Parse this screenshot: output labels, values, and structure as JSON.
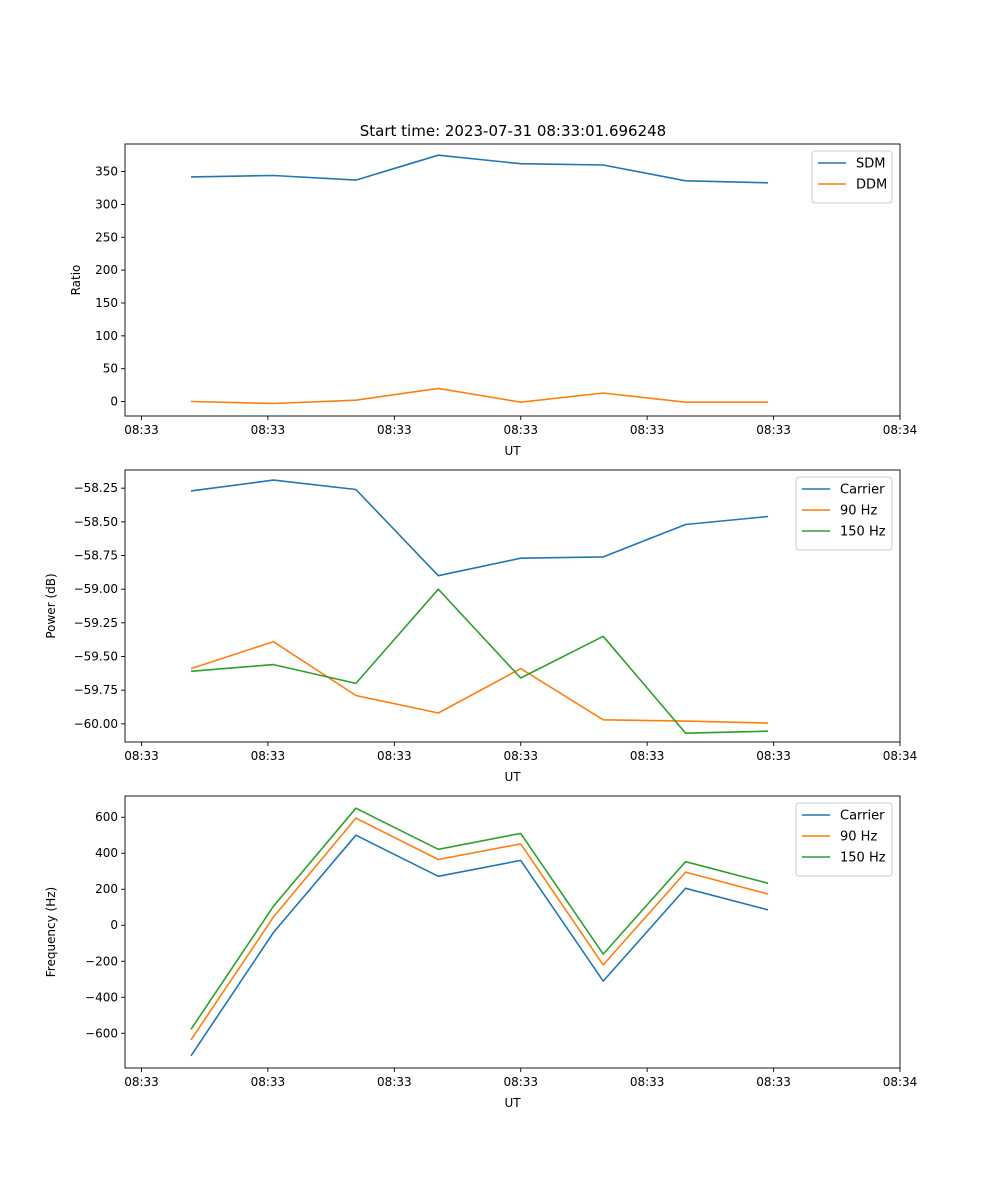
{
  "figure_title": "Start time: 2023-07-31 08:33:01.696248",
  "colors": {
    "blue": "#1f77b4",
    "orange": "#ff7f0e",
    "green": "#2ca02c"
  },
  "chart_data": [
    {
      "type": "line",
      "title": "Start time: 2023-07-31 08:33:01.696248",
      "xlabel": "UT",
      "ylabel": "Ratio",
      "x": [
        1,
        2,
        3,
        4,
        5,
        6,
        7,
        8
      ],
      "xlim": [
        0.2,
        9.6
      ],
      "x_ticks": [
        0.4,
        1.933,
        3.467,
        5.0,
        6.533,
        8.067,
        9.6
      ],
      "x_tick_labels": [
        "08:33",
        "08:33",
        "08:33",
        "08:33",
        "08:33",
        "08:33",
        "08:34"
      ],
      "ylim": [
        -22,
        392
      ],
      "y_ticks": [
        0,
        50,
        100,
        150,
        200,
        250,
        300,
        350
      ],
      "y_tick_labels": [
        "0",
        "50",
        "100",
        "150",
        "200",
        "250",
        "300",
        "350"
      ],
      "legend_location": "upper right",
      "series": [
        {
          "name": "SDM",
          "color": "#1f77b4",
          "values": [
            342,
            344,
            337,
            375,
            362,
            360,
            336,
            333
          ]
        },
        {
          "name": "DDM",
          "color": "#ff7f0e",
          "values": [
            0,
            -3,
            2,
            20,
            -1,
            13,
            -1,
            -1
          ]
        }
      ]
    },
    {
      "type": "line",
      "title": "",
      "xlabel": "UT",
      "ylabel": "Power (dB)",
      "x": [
        1,
        2,
        3,
        4,
        5,
        6,
        7,
        8
      ],
      "xlim": [
        0.2,
        9.6
      ],
      "x_ticks": [
        0.4,
        1.933,
        3.467,
        5.0,
        6.533,
        8.067,
        9.6
      ],
      "x_tick_labels": [
        "08:33",
        "08:33",
        "08:33",
        "08:33",
        "08:33",
        "08:33",
        "08:34"
      ],
      "ylim": [
        -60.135,
        -58.115
      ],
      "y_ticks": [
        -60.0,
        -59.75,
        -59.5,
        -59.25,
        -59.0,
        -58.75,
        -58.5,
        -58.25
      ],
      "y_tick_labels": [
        "−60.00",
        "−59.75",
        "−59.50",
        "−59.25",
        "−59.00",
        "−58.75",
        "−58.50",
        "−58.25"
      ],
      "legend_location": "upper right",
      "series": [
        {
          "name": "Carrier",
          "color": "#1f77b4",
          "values": [
            -58.27,
            -58.19,
            -58.26,
            -58.9,
            -58.77,
            -58.76,
            -58.52,
            -58.46
          ]
        },
        {
          "name": "90 Hz",
          "color": "#ff7f0e",
          "values": [
            -59.59,
            -59.39,
            -59.79,
            -59.92,
            -59.59,
            -59.97,
            -59.98,
            -59.995
          ]
        },
        {
          "name": "150 Hz",
          "color": "#2ca02c",
          "values": [
            -59.61,
            -59.56,
            -59.7,
            -59.0,
            -59.66,
            -59.35,
            -60.07,
            -60.055
          ]
        }
      ]
    },
    {
      "type": "line",
      "title": "",
      "xlabel": "UT",
      "ylabel": "Frequency (Hz)",
      "x": [
        1,
        2,
        3,
        4,
        5,
        6,
        7,
        8
      ],
      "xlim": [
        0.2,
        9.6
      ],
      "x_ticks": [
        0.4,
        1.933,
        3.467,
        5.0,
        6.533,
        8.067,
        9.6
      ],
      "x_tick_labels": [
        "08:33",
        "08:33",
        "08:33",
        "08:33",
        "08:33",
        "08:33",
        "08:34"
      ],
      "ylim": [
        -793,
        718
      ],
      "y_ticks": [
        -600,
        -400,
        -200,
        0,
        200,
        400,
        600
      ],
      "y_tick_labels": [
        "−600",
        "−400",
        "−200",
        "0",
        "200",
        "400",
        "600"
      ],
      "legend_location": "upper right",
      "series": [
        {
          "name": "Carrier",
          "color": "#1f77b4",
          "values": [
            -725,
            -40,
            500,
            272,
            360,
            -310,
            205,
            85
          ]
        },
        {
          "name": "90 Hz",
          "color": "#ff7f0e",
          "values": [
            -637,
            45,
            595,
            365,
            452,
            -220,
            295,
            173
          ]
        },
        {
          "name": "150 Hz",
          "color": "#2ca02c",
          "values": [
            -578,
            105,
            650,
            422,
            510,
            -160,
            353,
            233
          ]
        }
      ]
    }
  ]
}
